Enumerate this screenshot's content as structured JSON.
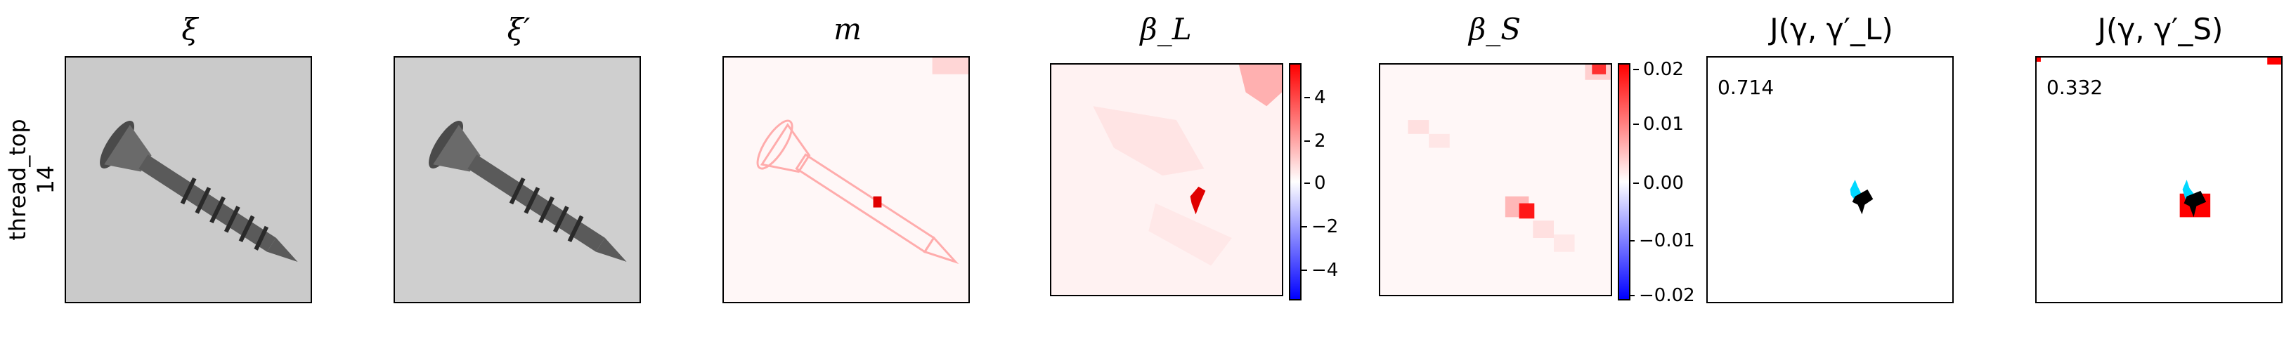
{
  "row_label": {
    "line1": "thread_top",
    "line2": "14"
  },
  "panels": [
    {
      "title": "ξ"
    },
    {
      "title": "ξ′"
    },
    {
      "title": "m"
    },
    {
      "title": "β_L"
    },
    {
      "title": "β_S"
    },
    {
      "title": "J(γ, γ′_L)",
      "score": "0.714"
    },
    {
      "title": "J(γ, γ′_S)",
      "score": "0.332"
    }
  ],
  "colorbars": {
    "beta_L": {
      "ticks": [
        "4",
        "2",
        "0",
        "−2",
        "−4"
      ]
    },
    "beta_S": {
      "ticks": [
        "0.02",
        "0.01",
        "0.00",
        "−0.01",
        "−0.02"
      ]
    }
  },
  "colors": {
    "positive": "#ff0000",
    "negative": "#0000ff",
    "neutral": "#ffffff",
    "screw_gray": "#d0d0d0",
    "gt_mask": "#000000",
    "pred_mask": "#00d8ff"
  }
}
